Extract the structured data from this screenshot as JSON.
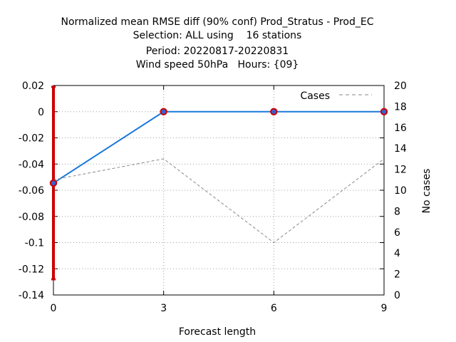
{
  "chart_data": {
    "type": "line",
    "title_lines": [
      "Normalized mean RMSE diff (90% conf) Prod_Stratus - Prod_EC",
      "Selection: ALL using    16 stations",
      "Period: 20220817-20220831",
      "Wind speed 50hPa   Hours: {09}"
    ],
    "xlabel": "Forecast length",
    "ylabel": "",
    "y2label": "No cases",
    "x": [
      0,
      3,
      6,
      9
    ],
    "xlim": [
      0,
      9
    ],
    "xticks": [
      "0",
      "3",
      "6",
      "9"
    ],
    "ylim": [
      -0.14,
      0.02
    ],
    "yticks": [
      "0.02",
      "0",
      "-0.02",
      "-0.04",
      "-0.06",
      "-0.08",
      "-0.1",
      "-0.12",
      "-0.14"
    ],
    "y2lim": [
      0,
      20
    ],
    "y2ticks": [
      "20",
      "18",
      "16",
      "14",
      "12",
      "10",
      "8",
      "6",
      "4",
      "2",
      "0"
    ],
    "grid": true,
    "legend_position": "top-right",
    "series": [
      {
        "values": [
          -0.0545,
          0.0,
          0.0,
          0.0
        ],
        "axis": "left",
        "color": "#1a78dc",
        "marker_color": "#cc0000",
        "marker_fill": "#3a5fcd"
      },
      {
        "name": "Cases",
        "values": [
          11,
          13,
          5,
          13
        ],
        "axis": "right",
        "color": "#888888",
        "dashed": true
      }
    ],
    "errorbars": [
      {
        "x": 0,
        "low": -0.128,
        "high": 0.019,
        "color": "#cc0000"
      }
    ]
  }
}
